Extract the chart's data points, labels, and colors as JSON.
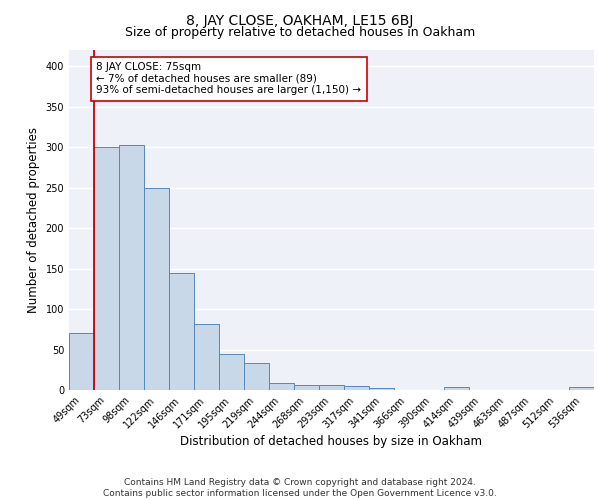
{
  "title": "8, JAY CLOSE, OAKHAM, LE15 6BJ",
  "subtitle": "Size of property relative to detached houses in Oakham",
  "xlabel": "Distribution of detached houses by size in Oakham",
  "ylabel": "Number of detached properties",
  "bin_labels": [
    "49sqm",
    "73sqm",
    "98sqm",
    "122sqm",
    "146sqm",
    "171sqm",
    "195sqm",
    "219sqm",
    "244sqm",
    "268sqm",
    "293sqm",
    "317sqm",
    "341sqm",
    "366sqm",
    "390sqm",
    "414sqm",
    "439sqm",
    "463sqm",
    "487sqm",
    "512sqm",
    "536sqm"
  ],
  "bar_heights": [
    70,
    300,
    303,
    250,
    145,
    82,
    44,
    33,
    9,
    6,
    6,
    5,
    2,
    0,
    0,
    4,
    0,
    0,
    0,
    0,
    4
  ],
  "bar_color": "#c8d8e8",
  "bar_edge_color": "#5588bb",
  "vline_x_index": 1,
  "vline_color": "#cc0000",
  "annotation_text": "8 JAY CLOSE: 75sqm\n← 7% of detached houses are smaller (89)\n93% of semi-detached houses are larger (1,150) →",
  "annotation_box_color": "#ffffff",
  "annotation_box_edge": "#cc0000",
  "ylim": [
    0,
    420
  ],
  "yticks": [
    0,
    50,
    100,
    150,
    200,
    250,
    300,
    350,
    400
  ],
  "footer": "Contains HM Land Registry data © Crown copyright and database right 2024.\nContains public sector information licensed under the Open Government Licence v3.0.",
  "background_color": "#eef2f8",
  "grid_color": "#ffffff",
  "title_fontsize": 10,
  "subtitle_fontsize": 9,
  "xlabel_fontsize": 8.5,
  "ylabel_fontsize": 8.5,
  "tick_fontsize": 7,
  "footer_fontsize": 6.5,
  "annotation_fontsize": 7.5
}
